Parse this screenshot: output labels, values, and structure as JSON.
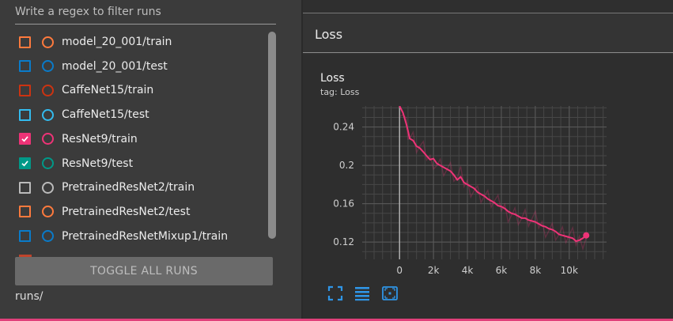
{
  "sidebar": {
    "filter_placeholder": "Write a regex to filter runs",
    "runs": [
      {
        "label": "model_20_001/train",
        "color": "#ff7a3d",
        "checked": false
      },
      {
        "label": "model_20_001/test",
        "color": "#0a7bc9",
        "checked": false
      },
      {
        "label": "CaffeNet15/train",
        "color": "#cc3311",
        "checked": false
      },
      {
        "label": "CaffeNet15/test",
        "color": "#33bbee",
        "checked": false
      },
      {
        "label": "ResNet9/train",
        "color": "#ee3377",
        "checked": true
      },
      {
        "label": "ResNet9/test",
        "color": "#009988",
        "checked": true
      },
      {
        "label": "PretrainedResNet2/train",
        "color": "#bbbbbb",
        "checked": false
      },
      {
        "label": "PretrainedResNet2/test",
        "color": "#ff7a3d",
        "checked": false
      },
      {
        "label": "PretrainedResNetMixup1/train",
        "color": "#0a7bc9",
        "checked": false
      }
    ],
    "toggle_all_label": "TOGGLE ALL RUNS",
    "runs_dir": "runs/"
  },
  "main": {
    "section_title": "Loss",
    "chart": {
      "title": "Loss",
      "tag": "tag: Loss"
    },
    "tools": [
      {
        "icon": "fit-domain-icon"
      },
      {
        "icon": "toggle-y-log-icon"
      },
      {
        "icon": "select-region-icon"
      }
    ]
  },
  "chart_data": {
    "type": "line",
    "title": "Loss",
    "subtitle": "tag: Loss",
    "xlim": [
      -2200,
      12200
    ],
    "ylim": [
      0.102,
      0.262
    ],
    "x_ticks": [
      0,
      2000,
      4000,
      6000,
      8000,
      10000
    ],
    "x_tick_labels": [
      "0",
      "2k",
      "4k",
      "6k",
      "8k",
      "10k"
    ],
    "y_ticks": [
      0.12,
      0.16,
      0.2,
      0.24
    ],
    "y_tick_labels": [
      "0.12",
      "0.16",
      "0.2",
      "0.24"
    ],
    "grid": true,
    "series": [
      {
        "color": "#ee3377",
        "x": [
          0,
          200,
          400,
          500,
          600,
          800,
          1000,
          1200,
          1400,
          1600,
          1800,
          2000,
          2200,
          2400,
          2600,
          2800,
          3000,
          3200,
          3400,
          3600,
          3800,
          4000,
          4200,
          4400,
          4600,
          4800,
          5000,
          5200,
          5400,
          5600,
          5800,
          6000,
          6200,
          6400,
          6600,
          6800,
          7000,
          7200,
          7400,
          7600,
          7800,
          8000,
          8200,
          8400,
          8600,
          8800,
          9000,
          9200,
          9400,
          9600,
          9800,
          10000,
          10200,
          10400,
          10600,
          10800,
          11000
        ],
        "y": [
          0.262,
          0.255,
          0.243,
          0.236,
          0.228,
          0.226,
          0.22,
          0.218,
          0.214,
          0.21,
          0.206,
          0.207,
          0.202,
          0.2,
          0.198,
          0.196,
          0.194,
          0.19,
          0.185,
          0.188,
          0.182,
          0.18,
          0.178,
          0.176,
          0.172,
          0.17,
          0.168,
          0.165,
          0.163,
          0.161,
          0.158,
          0.157,
          0.155,
          0.152,
          0.15,
          0.149,
          0.147,
          0.145,
          0.145,
          0.143,
          0.142,
          0.141,
          0.139,
          0.137,
          0.136,
          0.134,
          0.133,
          0.131,
          0.128,
          0.127,
          0.126,
          0.125,
          0.124,
          0.121,
          0.122,
          0.124,
          0.127
        ]
      }
    ]
  }
}
